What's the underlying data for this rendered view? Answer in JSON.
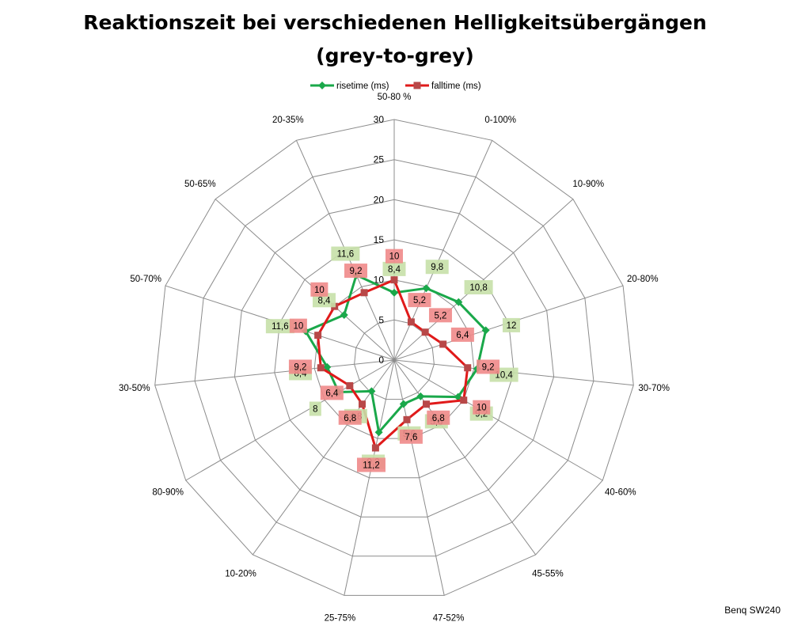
{
  "chart_data": {
    "type": "radar",
    "title_line1": "Reaktionszeit bei verschiedenen Helligkeitsübergängen",
    "title_line2": "(grey-to-grey)",
    "categories": [
      "50-80 %",
      "0-100%",
      "10-90%",
      "20-80%",
      "30-70%",
      "40-60%",
      "45-55%",
      "47-52%",
      "25-75%",
      "10-20%",
      "80-90%",
      "30-50%",
      "50-70%",
      "50-65%",
      "20-35%"
    ],
    "rlim": [
      0,
      30
    ],
    "ticks": [
      0,
      5,
      10,
      15,
      20,
      25,
      30
    ],
    "grid": true,
    "legend_position": "top",
    "series": [
      {
        "name": "risetime (ms)",
        "color": "#1aa84a",
        "marker": "diamond",
        "label_bg": "#c6e0a8",
        "values": [
          8.4,
          9.8,
          10.8,
          12,
          10.4,
          9.2,
          5.6,
          5.6,
          9.2,
          4.8,
          8,
          8.4,
          11.6,
          8.4,
          11.6
        ],
        "labels": [
          "8,4",
          "9,8",
          "10,8",
          "12",
          "10,4",
          "9,2",
          "5,6",
          "5,6",
          "9,2",
          "4,8",
          "8",
          "8,4",
          "11,6",
          "8,4",
          "11,6"
        ]
      },
      {
        "name": "falltime (ms)",
        "color": "#e01a1a",
        "marker": "square",
        "label_bg": "#f08a8a",
        "values": [
          10,
          5.2,
          5.2,
          6.4,
          9.2,
          10,
          6.8,
          7.6,
          11.2,
          6.8,
          6.4,
          9.2,
          10,
          10,
          9.2
        ],
        "labels": [
          "10",
          "5,2",
          "5,2",
          "6,4",
          "9,2",
          "10",
          "6,8",
          "7,6",
          "11,2",
          "6,8",
          "6,4",
          "9,2",
          "10",
          "10",
          "9,2"
        ]
      }
    ]
  },
  "credit": "Benq SW240"
}
